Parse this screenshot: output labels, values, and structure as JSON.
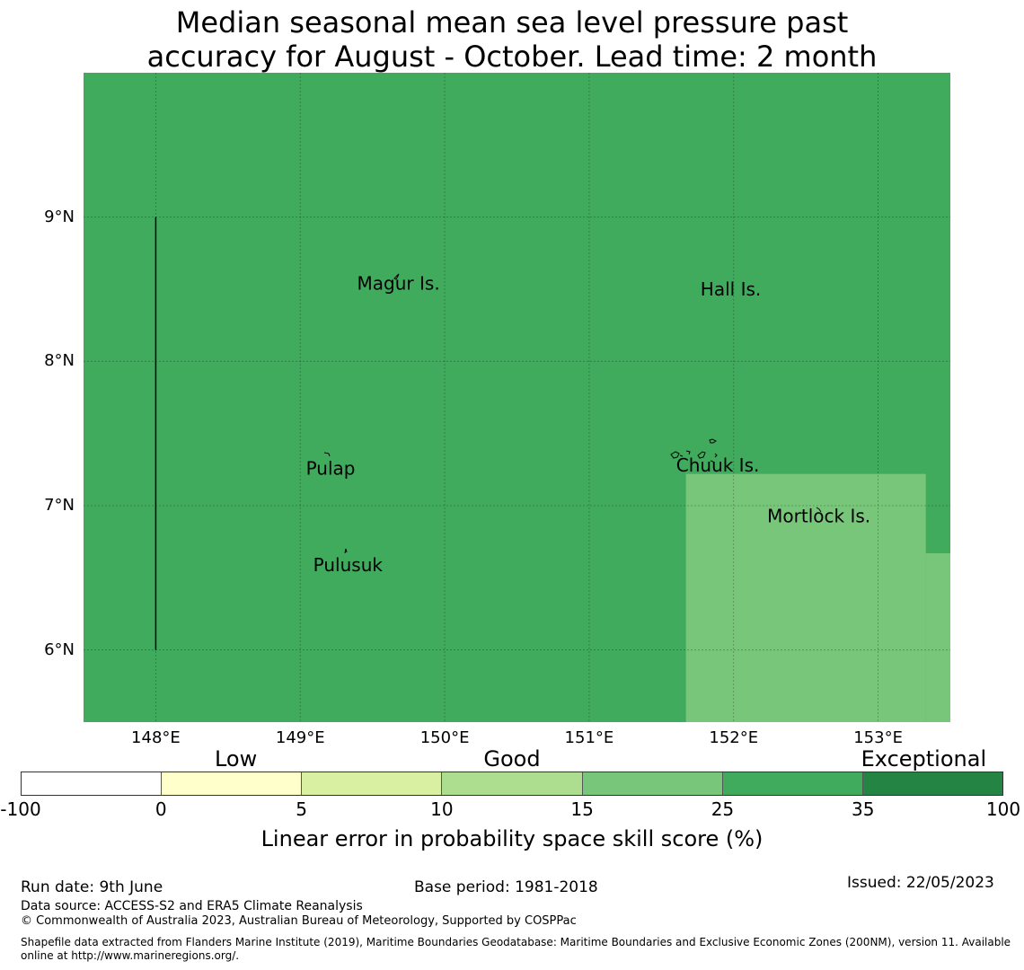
{
  "title": {
    "line1": "Median seasonal mean sea level pressure past",
    "line2": "accuracy for August - October. Lead time: 2 month"
  },
  "map": {
    "lon_range": [
      147.5,
      153.5
    ],
    "lat_range": [
      5.5,
      10.0
    ],
    "lat_ticks": [
      {
        "value": 9,
        "label": "9°N"
      },
      {
        "value": 8,
        "label": "8°N"
      },
      {
        "value": 7,
        "label": "7°N"
      },
      {
        "value": 6,
        "label": "6°N"
      }
    ],
    "lon_ticks": [
      {
        "value": 148,
        "label": "148°E"
      },
      {
        "value": 149,
        "label": "149°E"
      },
      {
        "value": 150,
        "label": "150°E"
      },
      {
        "value": 151,
        "label": "151°E"
      },
      {
        "value": 152,
        "label": "152°E"
      },
      {
        "value": 153,
        "label": "153°E"
      }
    ],
    "background_color": "#41ab5d",
    "skill_regions": [
      {
        "color": "#78c679",
        "lon": [
          151.67,
          153.33
        ],
        "lat": [
          5.5,
          7.22
        ]
      },
      {
        "color": "#78c679",
        "lon": [
          153.33,
          153.5
        ],
        "lat": [
          5.5,
          6.67
        ]
      }
    ],
    "boundary_line": {
      "lon": 148.0,
      "lat": [
        6.0,
        9.0
      ]
    },
    "places": [
      {
        "name": "Magur Is.",
        "lon": 149.68,
        "lat": 8.53
      },
      {
        "name": "Hall Is.",
        "lon": 151.98,
        "lat": 8.49
      },
      {
        "name": "Pulap",
        "lon": 149.21,
        "lat": 7.25
      },
      {
        "name": "Chuuk Is.",
        "lon": 151.89,
        "lat": 7.27
      },
      {
        "name": "Mortlock Is.",
        "lon": 152.59,
        "lat": 6.92
      },
      {
        "name": "Pulusuk",
        "lon": 149.33,
        "lat": 6.58
      }
    ]
  },
  "legend": {
    "categories": [
      {
        "label": "Low",
        "pos": 0.219
      },
      {
        "label": "Good",
        "pos": 0.5
      },
      {
        "label": "Exceptional",
        "pos": 0.919
      }
    ],
    "colors": [
      "#ffffff",
      "#ffffcc",
      "#d9f0a3",
      "#addd8e",
      "#78c679",
      "#41ab5d",
      "#238443"
    ],
    "ticks": [
      "-100",
      "0",
      "5",
      "10",
      "15",
      "25",
      "35",
      "100"
    ],
    "label": "Linear error in probability space skill score (%)"
  },
  "footer": {
    "run_date": "Run date: 9th June",
    "base_period": "Base period: 1981-2018",
    "issued": "Issued: 22/05/2023",
    "data_source": "Data source: ACCESS-S2 and ERA5 Climate Reanalysis",
    "copyright": "© Commonwealth of Australia 2023, Australian Bureau of Meteorology, Supported by COSPPac",
    "shapefile": "Shapefile data extracted from Flanders Marine Institute (2019), Maritime Boundaries Geodatabase: Maritime Boundaries and Exclusive Economic Zones (200NM), version 11. Available online at http://www.marineregions.org/."
  }
}
